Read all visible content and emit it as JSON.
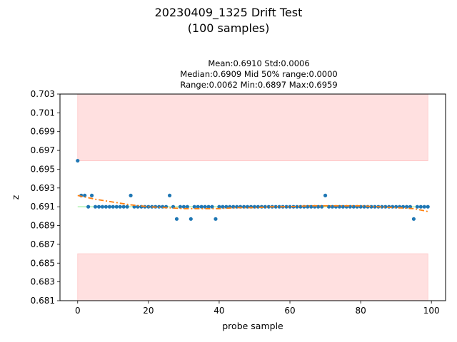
{
  "chart_data": {
    "type": "scatter",
    "title_line1": "20230409_1325 Drift Test",
    "title_line2": "(100 samples)",
    "stats_line1": "Mean:0.6910  Std:0.0006",
    "stats_line2": "Median:0.6909  Mid 50% range:0.0000",
    "stats_line3": "Range:0.0062  Min:0.6897  Max:0.6959",
    "xlabel": "probe sample",
    "ylabel": "z",
    "xlim": [
      -5,
      104
    ],
    "ylim": [
      0.681,
      0.703
    ],
    "xticks": [
      0,
      20,
      40,
      60,
      80,
      100
    ],
    "yticks": [
      0.681,
      0.683,
      0.685,
      0.687,
      0.689,
      0.691,
      0.693,
      0.695,
      0.697,
      0.699,
      0.701,
      0.703
    ],
    "shaded_bands": [
      {
        "x": [
          0,
          99
        ],
        "y": [
          0.6959,
          0.703
        ]
      },
      {
        "x": [
          0,
          99
        ],
        "y": [
          0.681,
          0.686
        ]
      }
    ],
    "reference_line": {
      "x": [
        0,
        99
      ],
      "y": 0.691
    },
    "trend": {
      "x": [
        0,
        5,
        10,
        15,
        20,
        25,
        30,
        35,
        40,
        45,
        50,
        55,
        60,
        65,
        70,
        75,
        80,
        85,
        90,
        95,
        99
      ],
      "y": [
        0.6922,
        0.6918,
        0.6915,
        0.6912,
        0.691,
        0.6909,
        0.6908,
        0.6908,
        0.6908,
        0.6909,
        0.6909,
        0.691,
        0.691,
        0.6911,
        0.6911,
        0.6911,
        0.6911,
        0.691,
        0.6909,
        0.6908,
        0.6905
      ]
    },
    "series": [
      {
        "values": [
          0.6959,
          0.6922,
          0.6922,
          0.691,
          0.6922,
          0.691,
          0.691,
          0.691,
          0.691,
          0.691,
          0.691,
          0.691,
          0.691,
          0.691,
          0.691,
          0.6922,
          0.691,
          0.691,
          0.691,
          0.691,
          0.691,
          0.691,
          0.691,
          0.691,
          0.691,
          0.691,
          0.6922,
          0.691,
          0.6897,
          0.691,
          0.691,
          0.691,
          0.6897,
          0.691,
          0.691,
          0.691,
          0.691,
          0.691,
          0.691,
          0.6897,
          0.691,
          0.691,
          0.691,
          0.691,
          0.691,
          0.691,
          0.691,
          0.691,
          0.691,
          0.691,
          0.691,
          0.691,
          0.691,
          0.691,
          0.691,
          0.691,
          0.691,
          0.691,
          0.691,
          0.691,
          0.691,
          0.691,
          0.691,
          0.691,
          0.691,
          0.691,
          0.691,
          0.691,
          0.691,
          0.691,
          0.6922,
          0.691,
          0.691,
          0.691,
          0.691,
          0.691,
          0.691,
          0.691,
          0.691,
          0.691,
          0.691,
          0.691,
          0.691,
          0.691,
          0.691,
          0.691,
          0.691,
          0.691,
          0.691,
          0.691,
          0.691,
          0.691,
          0.691,
          0.691,
          0.691,
          0.6897,
          0.691,
          0.691,
          0.691,
          0.691
        ]
      }
    ],
    "colors": {
      "points": "#1f77b4",
      "trend": "#ff7f0e",
      "reference": "#90ee90",
      "band": "#ffe0e0"
    }
  }
}
